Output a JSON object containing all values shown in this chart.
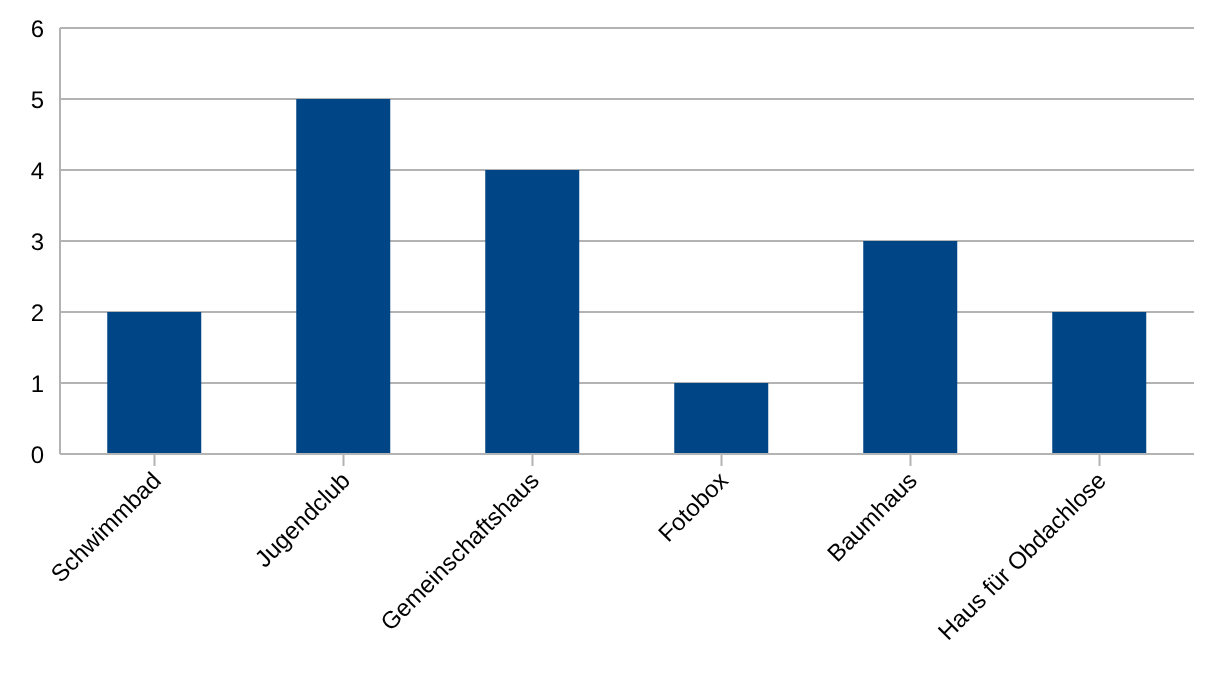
{
  "chart_data": {
    "type": "bar",
    "categories": [
      "Schwimmbad",
      "Jugendclub",
      "Gemeinschaftshaus",
      "Fotobox",
      "Baumhaus",
      "Haus für Obdachlose"
    ],
    "values": [
      2,
      5,
      4,
      1,
      3,
      2
    ],
    "color": "#004586",
    "ylim": [
      0,
      6
    ],
    "yticks": [
      0,
      1,
      2,
      3,
      4,
      5,
      6
    ],
    "grid": "y"
  }
}
